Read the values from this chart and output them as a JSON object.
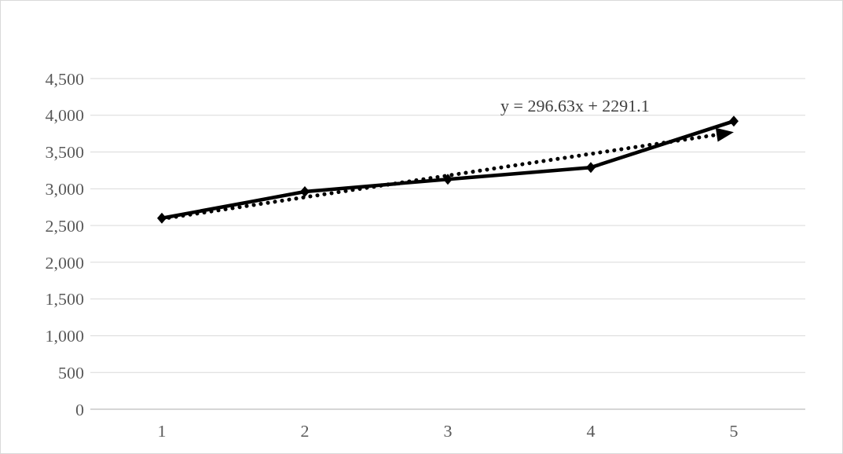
{
  "chart_data": {
    "type": "line",
    "categories": [
      "1",
      "2",
      "3",
      "4",
      "5"
    ],
    "series": [
      {
        "color": "#000000",
        "values": [
          2600,
          2960,
          3130,
          3290,
          3920
        ],
        "marker": "diamond",
        "line_style": "solid"
      },
      {
        "type": "line",
        "x": [
          "1",
          "5"
        ],
        "color": "#000000",
        "values": [
          2590,
          3770
        ],
        "marker": "none",
        "line_style": "dotted"
      }
    ],
    "ylim": [
      0,
      4500
    ],
    "yticks": [
      {
        "value": 0,
        "label": "0"
      },
      {
        "value": 500,
        "label": "500"
      },
      {
        "value": 1000,
        "label": "1,000"
      },
      {
        "value": 1500,
        "label": "1,500"
      },
      {
        "value": 2000,
        "label": "2,000"
      },
      {
        "value": 2500,
        "label": "2,500"
      },
      {
        "value": 3000,
        "label": "3,000"
      },
      {
        "value": 3500,
        "label": "3,500"
      },
      {
        "value": 4000,
        "label": "4,000"
      },
      {
        "value": 4500,
        "label": "4,500"
      }
    ],
    "grid": "y",
    "annotations": [
      "y = 296.63x + 2291.1"
    ]
  }
}
